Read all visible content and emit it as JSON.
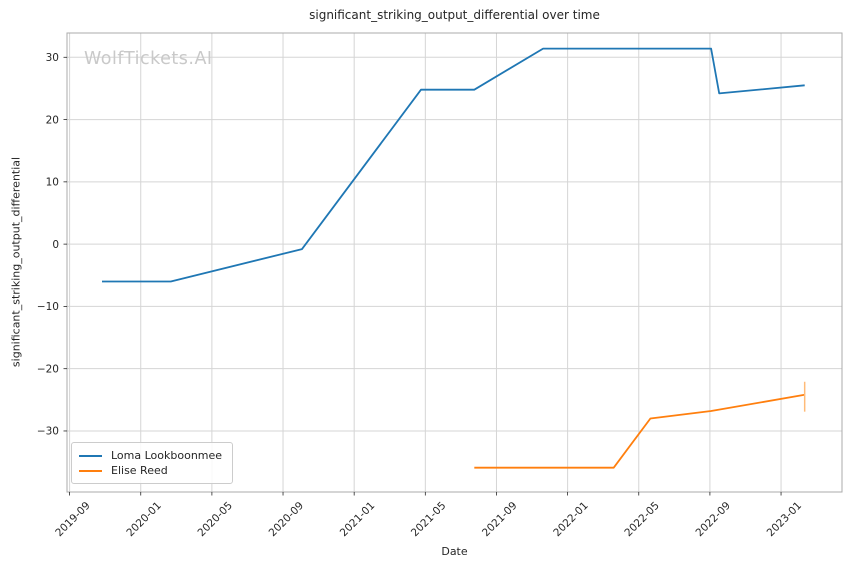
{
  "watermark": "WolfTickets.AI",
  "colors": {
    "background": "#ffffff",
    "grid": "#d5d5d5",
    "spine": "#ababab",
    "text": "#262626",
    "watermark": "#c9c9c9",
    "series_blue": "#1f77b4",
    "series_orange": "#ff7f0e",
    "error_bar": "#ffbb78"
  },
  "chart_data": {
    "type": "line",
    "title": "significant_striking_output_differential over time",
    "xlabel": "Date",
    "ylabel": "significant_striking_output_differential",
    "grid": true,
    "legend_position": "lower left",
    "xlim": [
      "2019-08-27",
      "2023-04-14"
    ],
    "ylim": [
      -39.8,
      33.9
    ],
    "x_ticks": [
      {
        "date": "2019-09-01",
        "label": "2019-09"
      },
      {
        "date": "2020-01-01",
        "label": "2020-01"
      },
      {
        "date": "2020-05-01",
        "label": "2020-05"
      },
      {
        "date": "2020-09-01",
        "label": "2020-09"
      },
      {
        "date": "2021-01-01",
        "label": "2021-01"
      },
      {
        "date": "2021-05-01",
        "label": "2021-05"
      },
      {
        "date": "2021-09-01",
        "label": "2021-09"
      },
      {
        "date": "2022-01-01",
        "label": "2022-01"
      },
      {
        "date": "2022-05-01",
        "label": "2022-05"
      },
      {
        "date": "2022-09-01",
        "label": "2022-09"
      },
      {
        "date": "2023-01-01",
        "label": "2023-01"
      }
    ],
    "y_ticks": [
      {
        "value": 30,
        "label": "30"
      },
      {
        "value": 20,
        "label": "20"
      },
      {
        "value": 10,
        "label": "10"
      },
      {
        "value": 0,
        "label": "0"
      },
      {
        "value": -10,
        "label": "−10"
      },
      {
        "value": -20,
        "label": "−20"
      },
      {
        "value": -30,
        "label": "−30"
      }
    ],
    "series": [
      {
        "name": "Loma Lookboonmee",
        "color": "#1f77b4",
        "points": [
          {
            "date": "2019-10-26",
            "value": -6.0
          },
          {
            "date": "2020-02-22",
            "value": -6.0
          },
          {
            "date": "2020-10-03",
            "value": -0.8
          },
          {
            "date": "2021-04-24",
            "value": 24.8
          },
          {
            "date": "2021-07-24",
            "value": 24.8
          },
          {
            "date": "2021-11-20",
            "value": 31.4
          },
          {
            "date": "2022-09-03",
            "value": 31.4
          },
          {
            "date": "2022-09-17",
            "value": 24.2
          },
          {
            "date": "2023-02-11",
            "value": 25.5
          }
        ]
      },
      {
        "name": "Elise Reed",
        "color": "#ff7f0e",
        "points": [
          {
            "date": "2021-07-24",
            "value": -35.9
          },
          {
            "date": "2022-03-19",
            "value": -35.9
          },
          {
            "date": "2022-05-21",
            "value": -28.0
          },
          {
            "date": "2022-09-03",
            "value": -26.8
          },
          {
            "date": "2023-02-11",
            "value": -24.2
          }
        ],
        "end_error_bar": {
          "date": "2023-02-11",
          "high": -22.1,
          "low": -26.9,
          "color": "#ffbb78"
        }
      }
    ]
  }
}
